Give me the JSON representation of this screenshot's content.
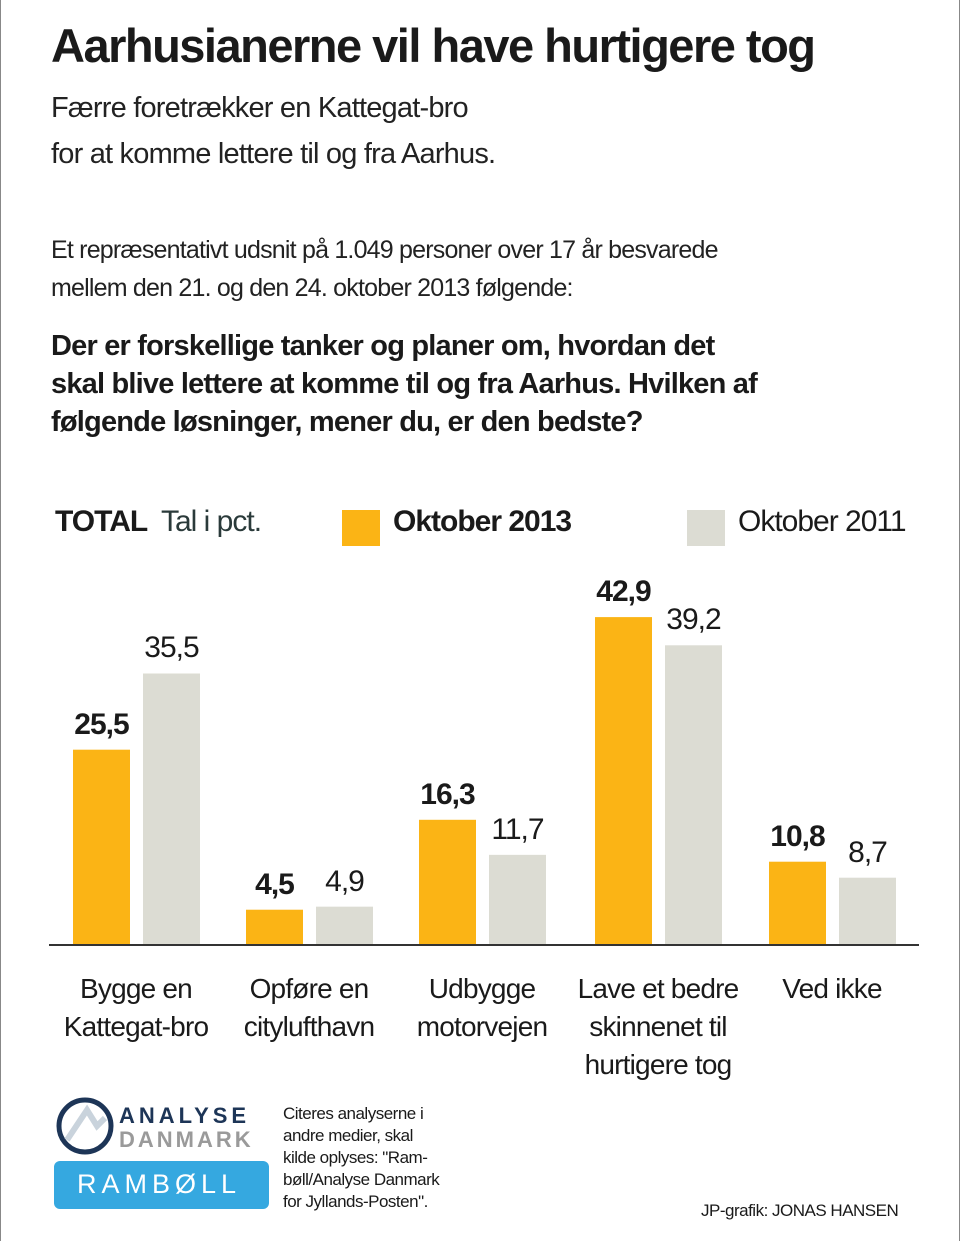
{
  "title": "Aarhusianerne vil have hurtigere tog",
  "subtitle": [
    "Færre foretrækker en Kattegat-bro",
    "for at komme lettere til og fra Aarhus."
  ],
  "intro": [
    "Et repræsentativt udsnit på 1.049 personer over 17 år besvarede",
    "mellem den 21. og den 24. oktober 2013 følgende:"
  ],
  "question": [
    "Der er forskellige tanker og planer om, hvordan det",
    "skal blive lettere at komme til og fra Aarhus. Hvilken af",
    "følgende løsninger, mener du, er den bedste?"
  ],
  "legend": {
    "total": "TOTAL",
    "unit": "Tal i pct."
  },
  "chart_data": {
    "type": "bar",
    "categories": [
      [
        "Bygge en",
        "Kattegat-bro"
      ],
      [
        "Opføre en",
        "citylufthavn"
      ],
      [
        "Udbygge",
        "motorvejen"
      ],
      [
        "Lave et bedre",
        "skinnenet til",
        "hurtigere tog"
      ],
      [
        "Ved ikke"
      ]
    ],
    "series": [
      {
        "name": "Oktober 2013",
        "color": "#fbb415",
        "values": [
          25.5,
          4.5,
          16.3,
          42.9,
          10.8
        ],
        "labels": [
          "25,5",
          "4,5",
          "16,3",
          "42,9",
          "10,8"
        ]
      },
      {
        "name": "Oktober 2011",
        "color": "#dcdcd3",
        "values": [
          35.5,
          4.9,
          11.7,
          39.2,
          8.7
        ],
        "labels": [
          "35,5",
          "4,9",
          "11,7",
          "39,2",
          "8,7"
        ]
      }
    ],
    "ylim": [
      0,
      45
    ],
    "xlabel": "",
    "ylabel": "Tal i pct.",
    "legend_position": "top"
  },
  "logos": {
    "analyse": [
      "ANALYSE",
      "DANMARK"
    ],
    "ramboll": "RAMBØLL"
  },
  "footer": {
    "citation": [
      "Citeres analyserne i",
      "andre medier, skal",
      "kilde oplyses: \"Ram-",
      "bøll/Analyse Danmark",
      "for Jyllands-Posten\"."
    ],
    "credit": "JP-grafik: JONAS HANSEN"
  }
}
